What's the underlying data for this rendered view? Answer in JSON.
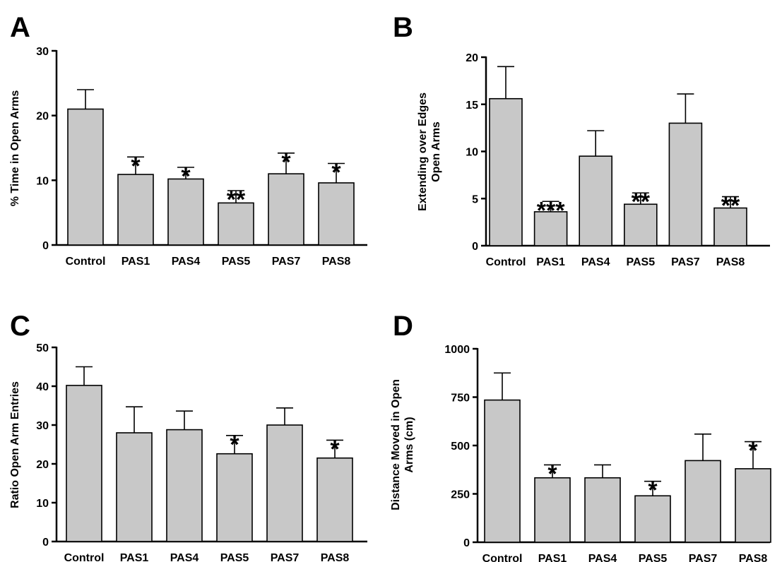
{
  "chart_data": [
    {
      "panel": "A",
      "type": "bar",
      "categories": [
        "Control",
        "PAS1",
        "PAS4",
        "PAS5",
        "PAS7",
        "PAS8"
      ],
      "values": [
        21,
        10.9,
        10.2,
        6.5,
        11,
        9.6
      ],
      "errors": [
        3,
        2.7,
        1.8,
        1.9,
        3.2,
        3
      ],
      "significance": [
        "",
        "*",
        "*",
        "**",
        "*",
        "*"
      ],
      "ylabel": "% Time in Open Arms",
      "ylim": [
        0,
        30
      ],
      "yticks": [
        0,
        10,
        20,
        30
      ]
    },
    {
      "panel": "B",
      "type": "bar",
      "categories": [
        "Control",
        "PAS1",
        "PAS4",
        "PAS5",
        "PAS7",
        "PAS8"
      ],
      "values": [
        15.6,
        3.6,
        9.5,
        4.4,
        13,
        4
      ],
      "errors": [
        3.4,
        1.1,
        2.7,
        1.2,
        3.1,
        1.2
      ],
      "significance": [
        "",
        "***",
        "",
        "**",
        "",
        "**"
      ],
      "ylabel": [
        "Extending over Edges",
        "Open Arms"
      ],
      "ylim": [
        0,
        20
      ],
      "yticks": [
        0,
        5,
        10,
        15,
        20
      ]
    },
    {
      "panel": "C",
      "type": "bar",
      "categories": [
        "Control",
        "PAS1",
        "PAS4",
        "PAS5",
        "PAS7",
        "PAS8"
      ],
      "values": [
        40.2,
        28,
        28.8,
        22.6,
        30,
        21.5
      ],
      "errors": [
        4.8,
        6.7,
        4.8,
        4.7,
        4.4,
        4.6
      ],
      "significance": [
        "",
        "",
        "",
        "*",
        "",
        "*"
      ],
      "ylabel": "Ratio Open Arm Entries",
      "ylim": [
        0,
        50
      ],
      "yticks": [
        0,
        10,
        20,
        30,
        40,
        50
      ]
    },
    {
      "panel": "D",
      "type": "bar",
      "categories": [
        "Control",
        "PAS1",
        "PAS4",
        "PAS5",
        "PAS7",
        "PAS8"
      ],
      "values": [
        735,
        333,
        333,
        240,
        422,
        380
      ],
      "errors": [
        140,
        67,
        67,
        75,
        137,
        140
      ],
      "significance": [
        "",
        "*",
        "",
        "*",
        "",
        "*"
      ],
      "ylabel": [
        "Distance Moved in Open",
        "Arms (cm)"
      ],
      "ylim": [
        0,
        1000
      ],
      "yticks": [
        0,
        250,
        500,
        750,
        1000
      ]
    }
  ]
}
